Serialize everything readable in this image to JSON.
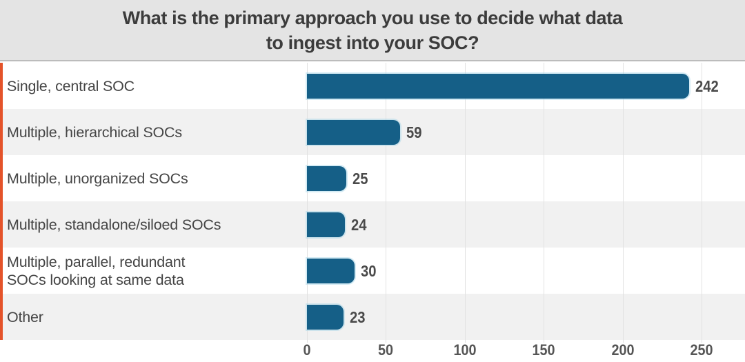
{
  "title_bar": {
    "line1": "What is the primary approach you use to decide what data",
    "line2": "to ingest into your SOC?",
    "background": "#e4e4e4",
    "divider_color": "#bcbcbc",
    "text_color": "#3c3c3c"
  },
  "chart_data": {
    "type": "bar",
    "orientation": "horizontal",
    "title": "What is the primary approach you use to decide what data to ingest into your SOC?",
    "categories": [
      "Single, central SOC",
      "Multiple, hierarchical SOCs",
      "Multiple, unorganized SOCs",
      "Multiple, standalone/siloed SOCs",
      "Multiple, parallel, redundant SOCs looking at same data",
      "Other"
    ],
    "category_lines": [
      [
        "Single, central SOC"
      ],
      [
        "Multiple, hierarchical SOCs"
      ],
      [
        "Multiple, unorganized SOCs"
      ],
      [
        "Multiple, standalone/siloed SOCs"
      ],
      [
        "Multiple, parallel, redundant",
        "SOCs looking at same data"
      ],
      [
        "Other"
      ]
    ],
    "values": [
      242,
      59,
      25,
      24,
      30,
      23
    ],
    "value_labels": [
      "242",
      "59",
      "25",
      "24",
      "30",
      "23"
    ],
    "x_ticks": [
      0,
      50,
      100,
      150,
      200,
      250
    ],
    "x_tick_labels": [
      "0",
      "50",
      "100",
      "150",
      "200",
      "250"
    ],
    "xlim": [
      0,
      277
    ],
    "grid": true,
    "legend": false,
    "xlabel": "",
    "ylabel": "",
    "colors": {
      "bar": "#155f87",
      "bar_outline": "#a0d2e6",
      "row_base": "#ffffff",
      "row_alt": "#f1f1f1",
      "gridline": "#e2e2e2",
      "accent_stripe": "#e4532a",
      "label": "#454545",
      "value": "#4a4a4a",
      "tick": "#555555"
    }
  }
}
